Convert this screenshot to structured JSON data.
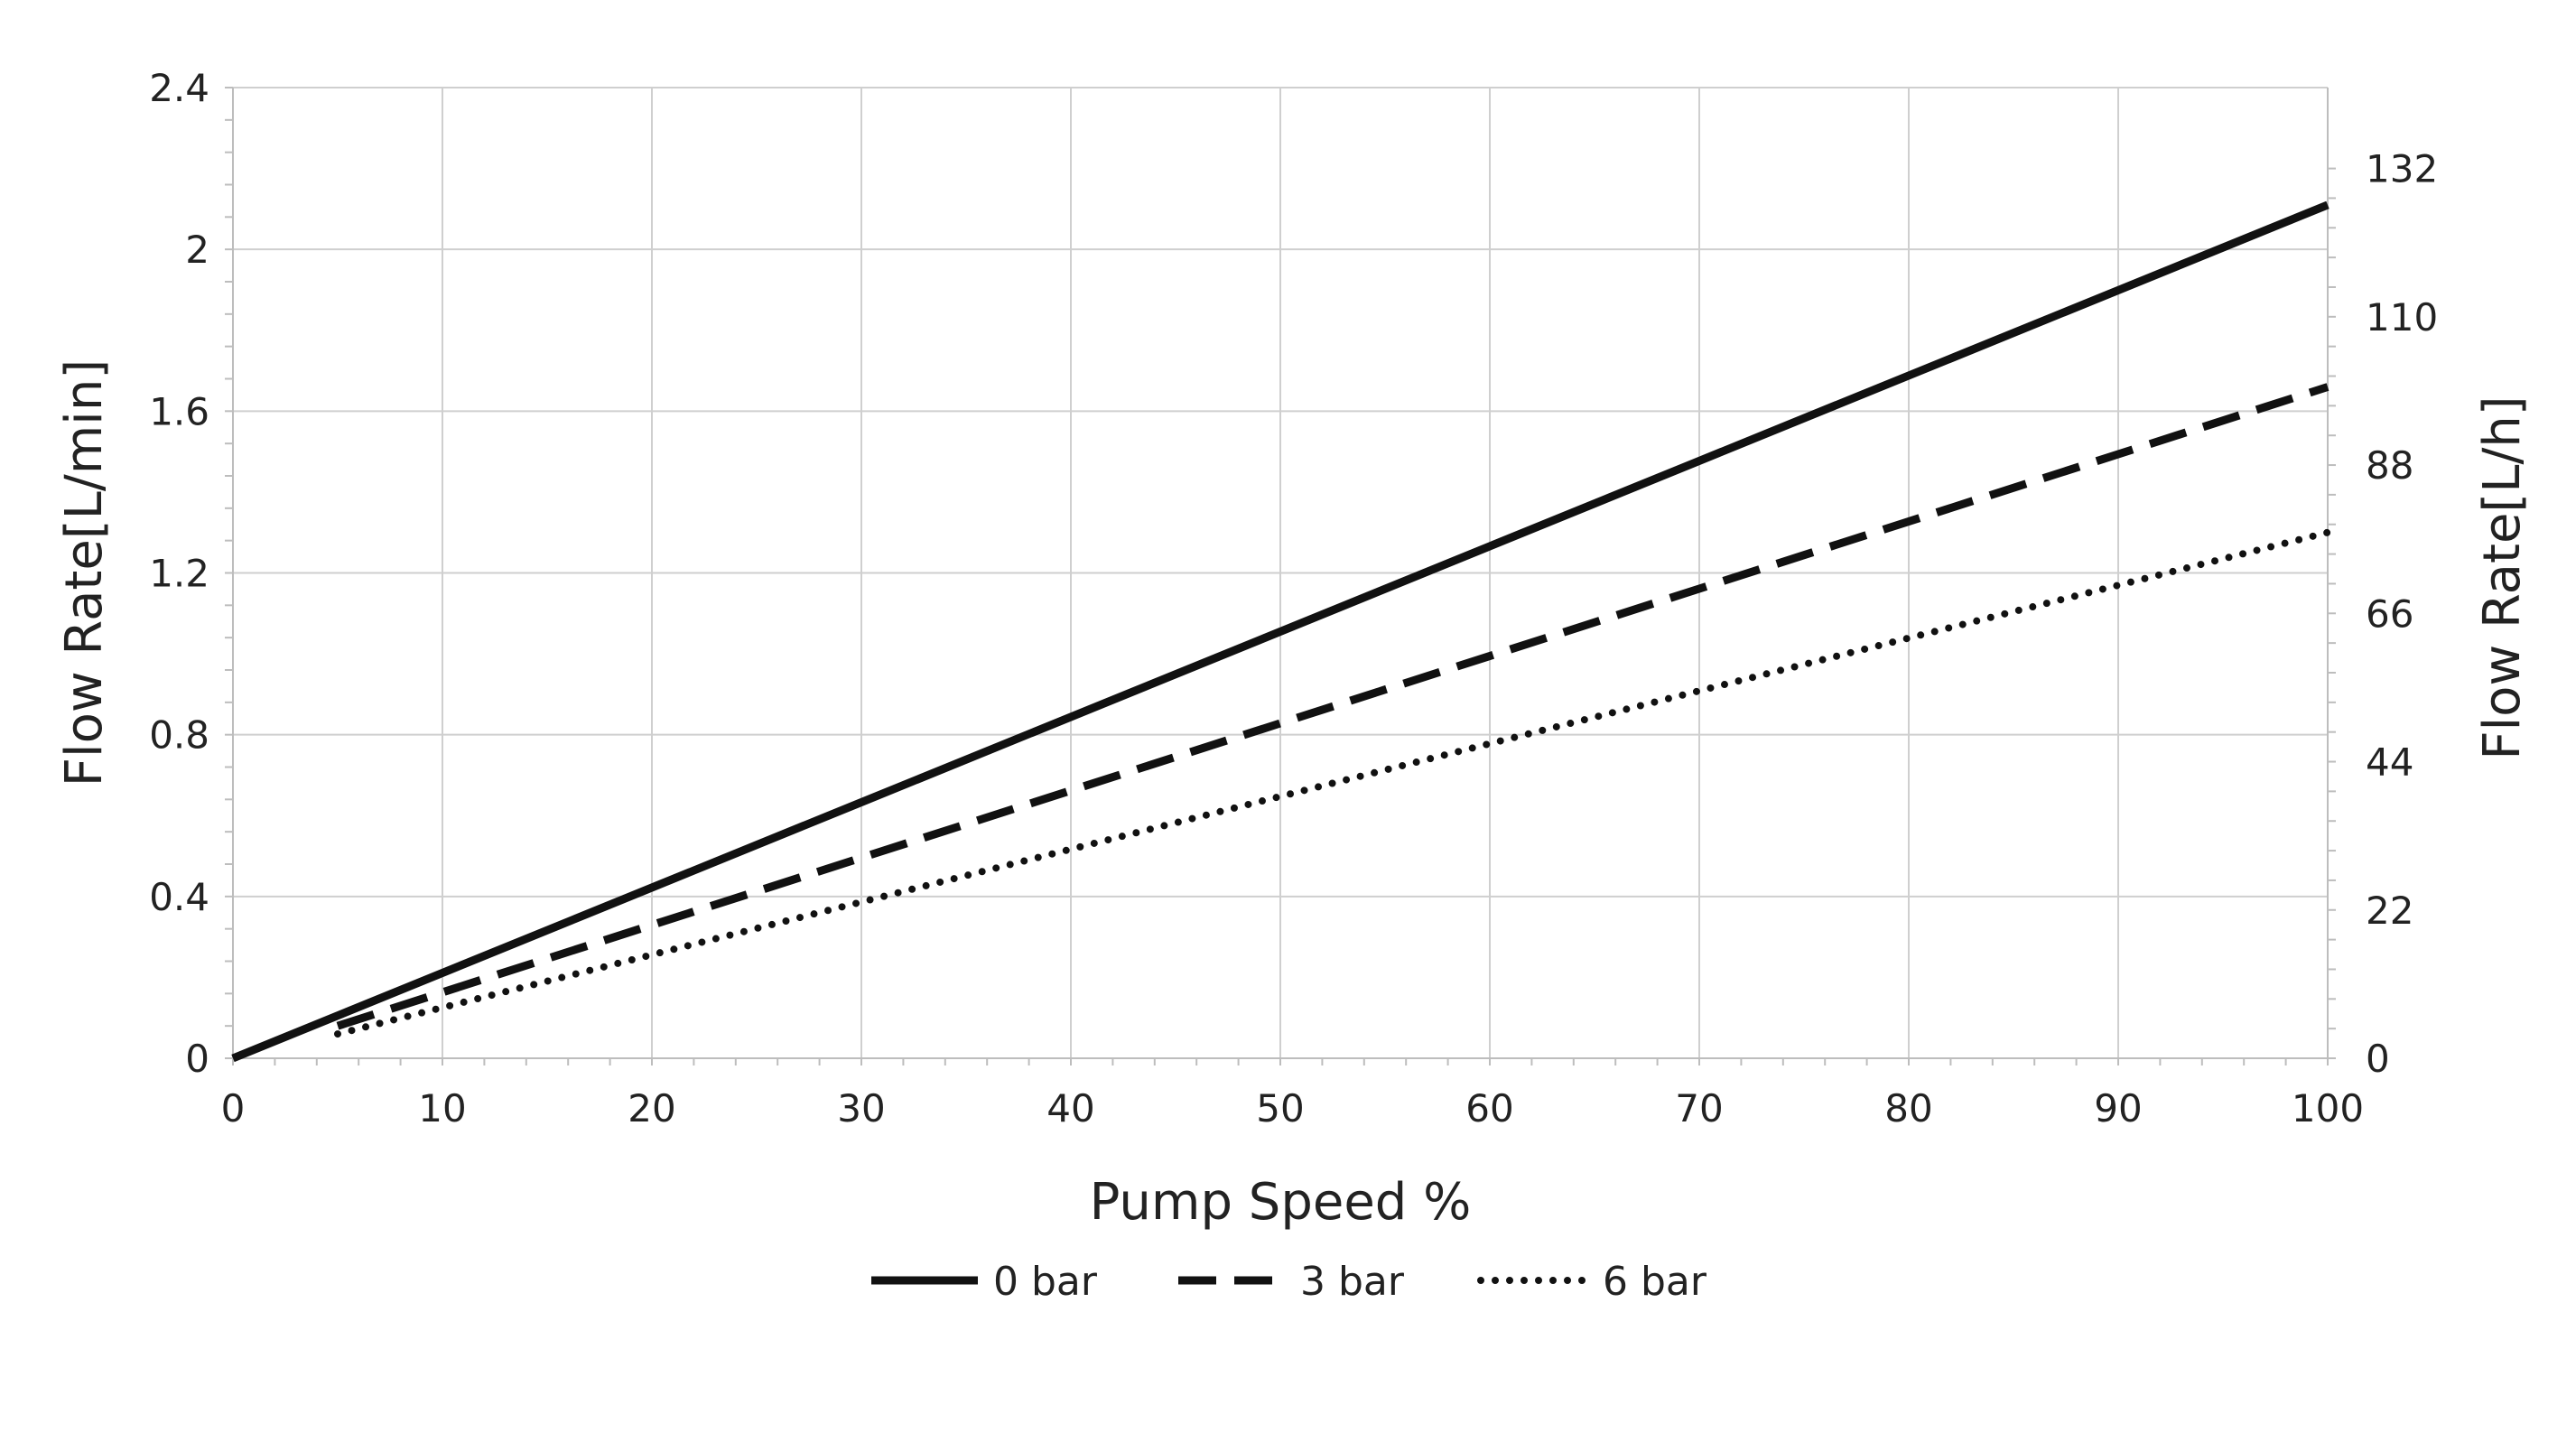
{
  "chart_data": {
    "type": "line",
    "title": "",
    "xlabel": "Pump Speed %",
    "ylabel": "Flow Rate[L/min]",
    "ylabel_right": "Flow Rate[L/h]",
    "xlim": [
      0,
      100
    ],
    "ylim": [
      0,
      2.4
    ],
    "ylim_right": [
      0,
      144
    ],
    "x_ticks": [
      "0",
      "10",
      "20",
      "30",
      "40",
      "50",
      "60",
      "70",
      "80",
      "90",
      "100"
    ],
    "y_ticks": [
      "0",
      "0.4",
      "0.8",
      "1.2",
      "1.6",
      "2",
      "2.4"
    ],
    "y_ticks_right": [
      "0",
      "22",
      "44",
      "66",
      "88",
      "110",
      "132"
    ],
    "grid": true,
    "legend_position": "bottom",
    "series": [
      {
        "name": "0 bar",
        "style": "solid",
        "x": [
          0,
          100
        ],
        "y": [
          0,
          2.11
        ],
        "color": "#111111"
      },
      {
        "name": "3 bar",
        "style": "dashed",
        "x": [
          5,
          100
        ],
        "y": [
          0.08,
          1.66
        ],
        "color": "#111111"
      },
      {
        "name": "6 bar",
        "style": "dotted",
        "x": [
          5,
          100
        ],
        "y": [
          0.06,
          1.3
        ],
        "color": "#111111"
      }
    ]
  }
}
